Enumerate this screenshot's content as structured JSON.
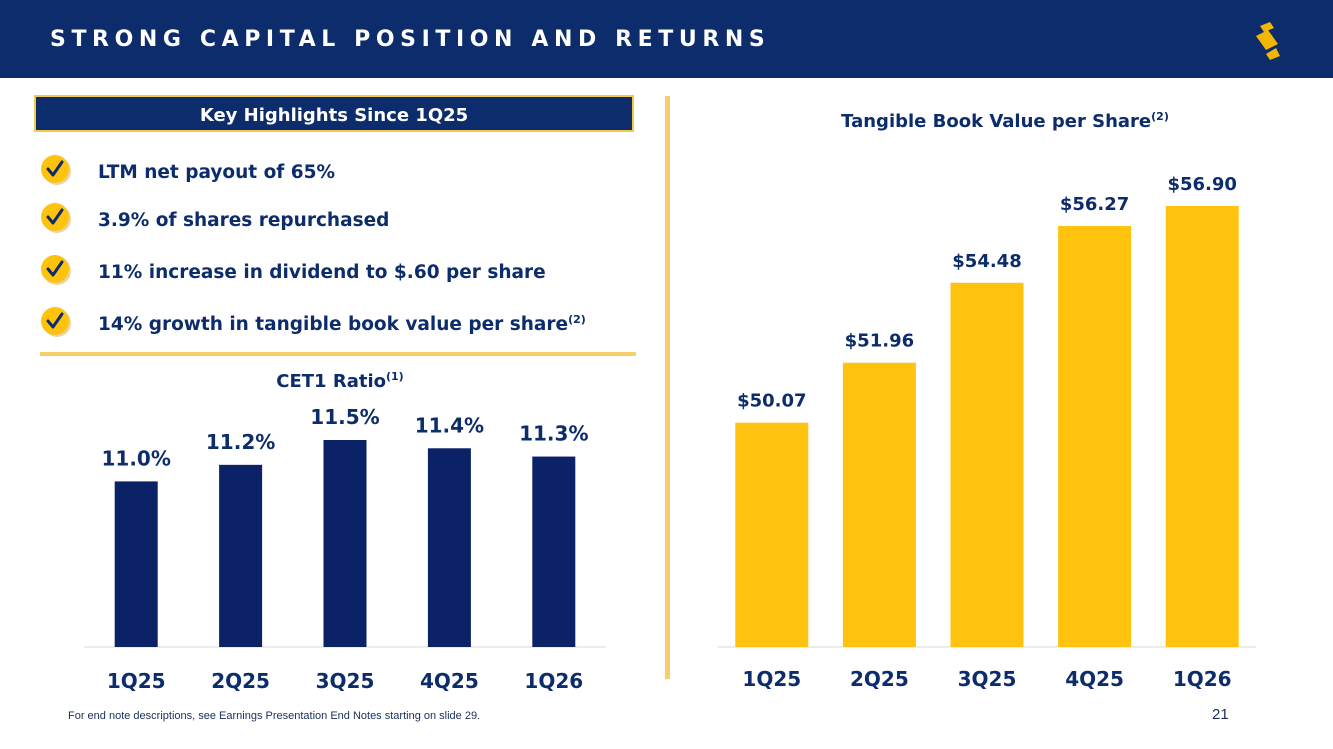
{
  "header": {
    "title": "STRONG CAPITAL POSITION AND RETURNS",
    "logo_icon": "s-stripe-logo-icon"
  },
  "highlights": {
    "title": "Key Highlights Since 1Q25",
    "items": [
      {
        "text": "LTM net payout of 65%",
        "sup": ""
      },
      {
        "text": "3.9% of shares repurchased",
        "sup": ""
      },
      {
        "text": "11% increase in dividend to $.60 per share",
        "sup": ""
      },
      {
        "text": "14% growth in tangible book value per share",
        "sup": "(2)"
      }
    ],
    "check_icon": "check-circle-icon"
  },
  "chart_data": [
    {
      "type": "bar",
      "title": "CET1 Ratio",
      "title_sup": "(1)",
      "categories": [
        "1Q25",
        "2Q25",
        "3Q25",
        "4Q25",
        "1Q26"
      ],
      "values": [
        11.0,
        11.2,
        11.5,
        11.4,
        11.3
      ],
      "labels": [
        "11.0%",
        "11.2%",
        "11.5%",
        "11.4%",
        "11.3%"
      ],
      "ylim": [
        9.0,
        11.5
      ],
      "grid": false,
      "color": "#0c2266"
    },
    {
      "type": "bar",
      "title": "Tangible Book Value per Share",
      "title_sup": "(2)",
      "categories": [
        "1Q25",
        "2Q25",
        "3Q25",
        "4Q25",
        "1Q26"
      ],
      "values": [
        50.07,
        51.96,
        54.48,
        56.27,
        56.9
      ],
      "labels": [
        "$50.07",
        "$51.96",
        "$54.48",
        "$56.27",
        "$56.90"
      ],
      "ylim": [
        43.0,
        56.9
      ],
      "grid": false,
      "color": "#ffc20e"
    }
  ],
  "footer": {
    "note": "For end note descriptions, see Earnings Presentation End Notes starting on slide 29.",
    "page": "21"
  }
}
